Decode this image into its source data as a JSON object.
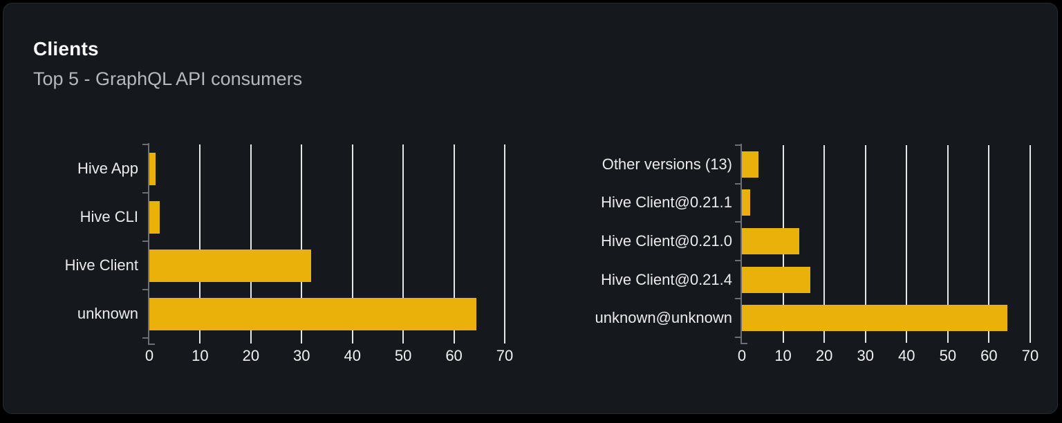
{
  "card": {
    "title": "Clients",
    "subtitle": "Top 5 - GraphQL API consumers"
  },
  "colors": {
    "page_bg": "#000000",
    "card_bg": "#15181c",
    "card_border": "#272b31",
    "bar": "#e9b10a",
    "gridline": "#e5e7eb",
    "axis": "#6a6f78",
    "category_label": "#e9ebee",
    "tick_label": "#f0f2f4",
    "title": "#f8f9fa",
    "subtitle": "#b4b9c0"
  },
  "chart_data": [
    {
      "type": "bar",
      "orientation": "horizontal",
      "name": "clients-by-name",
      "categories": [
        "Hive App",
        "Hive CLI",
        "Hive Client",
        "unknown"
      ],
      "values": [
        1.2,
        2,
        31.9,
        64.4
      ],
      "xlim": [
        0,
        70
      ],
      "xticks": [
        0,
        10,
        20,
        30,
        40,
        50,
        60,
        70
      ],
      "grid": true,
      "legend": "none",
      "bar_color": "#e9b10a"
    },
    {
      "type": "bar",
      "orientation": "horizontal",
      "name": "clients-by-version",
      "categories": [
        "Other versions (13)",
        "Hive Client@0.21.1",
        "Hive Client@0.21.0",
        "Hive Client@0.21.4",
        "unknown@unknown"
      ],
      "values": [
        4.1,
        2,
        13.9,
        16.7,
        64.4
      ],
      "xlim": [
        0,
        70
      ],
      "xticks": [
        0,
        10,
        20,
        30,
        40,
        50,
        60,
        70
      ],
      "grid": true,
      "legend": "none",
      "bar_color": "#e9b10a"
    }
  ]
}
